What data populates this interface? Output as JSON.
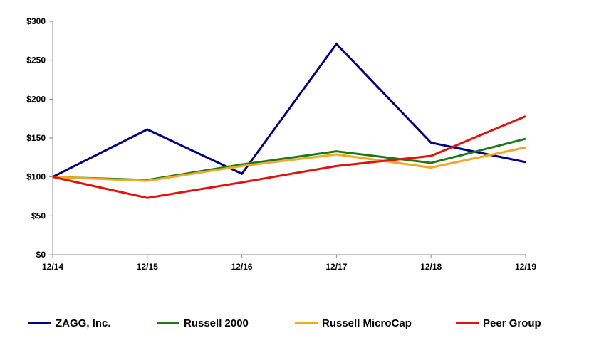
{
  "chart_data": {
    "type": "line",
    "title": "",
    "xlabel": "",
    "ylabel": "",
    "categories": [
      "12/14",
      "12/15",
      "12/16",
      "12/17",
      "12/18",
      "12/19"
    ],
    "ylim": [
      0,
      300
    ],
    "y_ticks": [
      "$0",
      "$50",
      "$100",
      "$150",
      "$200",
      "$250",
      "$300"
    ],
    "grid": false,
    "legend_position": "bottom",
    "series": [
      {
        "name": "ZAGG, Inc.",
        "color": "#000080",
        "values": [
          100,
          161,
          104,
          271,
          144,
          119
        ]
      },
      {
        "name": "Russell 2000",
        "color": "#1a7a1a",
        "values": [
          100,
          96,
          116,
          133,
          118,
          149
        ]
      },
      {
        "name": "Russell MicroCap",
        "color": "#f5a623",
        "values": [
          100,
          95,
          114,
          129,
          112,
          138
        ]
      },
      {
        "name": "Peer Group",
        "color": "#e3120b",
        "values": [
          100,
          73,
          93,
          114,
          127,
          178
        ]
      }
    ]
  }
}
